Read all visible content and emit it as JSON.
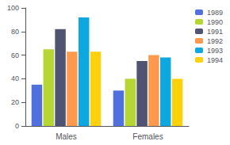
{
  "chart_data": {
    "type": "bar",
    "categories": [
      "Males",
      "Females"
    ],
    "series": [
      {
        "name": "1989",
        "values": [
          35,
          30
        ]
      },
      {
        "name": "1990",
        "values": [
          65,
          40
        ]
      },
      {
        "name": "1991",
        "values": [
          82,
          55
        ]
      },
      {
        "name": "1992",
        "values": [
          63,
          60
        ]
      },
      {
        "name": "1993",
        "values": [
          92,
          58
        ]
      },
      {
        "name": "1994",
        "values": [
          63,
          40
        ]
      }
    ],
    "ylim": [
      0,
      100
    ],
    "yticks": [
      0,
      20,
      40,
      60,
      80,
      100
    ],
    "grid": false,
    "legend": "upper right"
  }
}
